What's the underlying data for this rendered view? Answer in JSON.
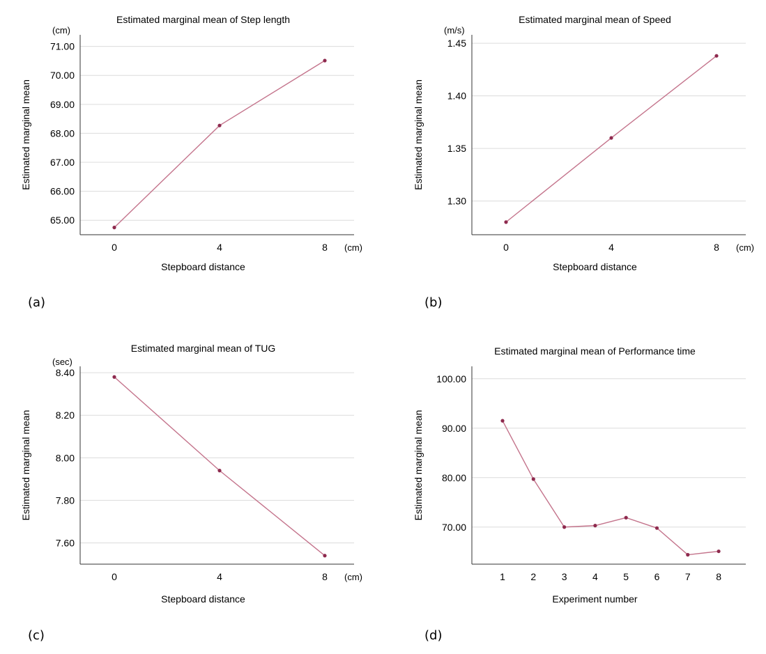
{
  "colors": {
    "series": "#c4748c",
    "point": "#8e2a4e"
  },
  "chart_data": [
    {
      "id": "a",
      "type": "line",
      "panel_label": "(a)",
      "title": "Estimated marginal mean of Step length",
      "xlabel": "Stepboard distance",
      "ylabel": "Estimated marginal mean",
      "y_unit": "(cm)",
      "x_unit": "(cm)",
      "categories": [
        "0",
        "4",
        "8"
      ],
      "values": [
        64.75,
        68.27,
        70.51
      ],
      "yticks": [
        "65.00",
        "66.00",
        "67.00",
        "68.00",
        "69.00",
        "70.00",
        "71.00"
      ],
      "ylim": [
        64.5,
        71.4
      ],
      "grid": true,
      "legend": "none"
    },
    {
      "id": "b",
      "type": "line",
      "panel_label": "(b)",
      "title": "Estimated marginal mean of Speed",
      "xlabel": "Stepboard distance",
      "ylabel": "Estimated marginal mean",
      "y_unit": "(m/s)",
      "x_unit": "(cm)",
      "categories": [
        "0",
        "4",
        "8"
      ],
      "values": [
        1.28,
        1.36,
        1.438
      ],
      "yticks": [
        "1.30",
        "1.35",
        "1.40",
        "1.45"
      ],
      "ylim": [
        1.268,
        1.458
      ],
      "grid": true,
      "legend": "none"
    },
    {
      "id": "c",
      "type": "line",
      "panel_label": "(c)",
      "title": "Estimated marginal mean of TUG",
      "xlabel": "Stepboard distance",
      "ylabel": "Estimated marginal mean",
      "y_unit": "(sec)",
      "x_unit": "(cm)",
      "categories": [
        "0",
        "4",
        "8"
      ],
      "values": [
        8.38,
        7.94,
        7.54
      ],
      "yticks": [
        "7.60",
        "7.80",
        "8.00",
        "8.20",
        "8.40"
      ],
      "ylim": [
        7.5,
        8.43
      ],
      "grid": true,
      "legend": "none"
    },
    {
      "id": "d",
      "type": "line",
      "panel_label": "(d)",
      "title": "Estimated marginal mean of Performance time",
      "xlabel": "Experiment number",
      "ylabel": "Estimated marginal mean",
      "y_unit": "",
      "x_unit": "",
      "categories": [
        "1",
        "2",
        "3",
        "4",
        "5",
        "6",
        "7",
        "8"
      ],
      "values": [
        91.5,
        79.7,
        70.0,
        70.3,
        71.9,
        69.8,
        64.4,
        65.1
      ],
      "yticks": [
        "70.00",
        "80.00",
        "90.00",
        "100.00"
      ],
      "ylim": [
        62.5,
        102.5
      ],
      "grid": true,
      "legend": "none"
    }
  ]
}
